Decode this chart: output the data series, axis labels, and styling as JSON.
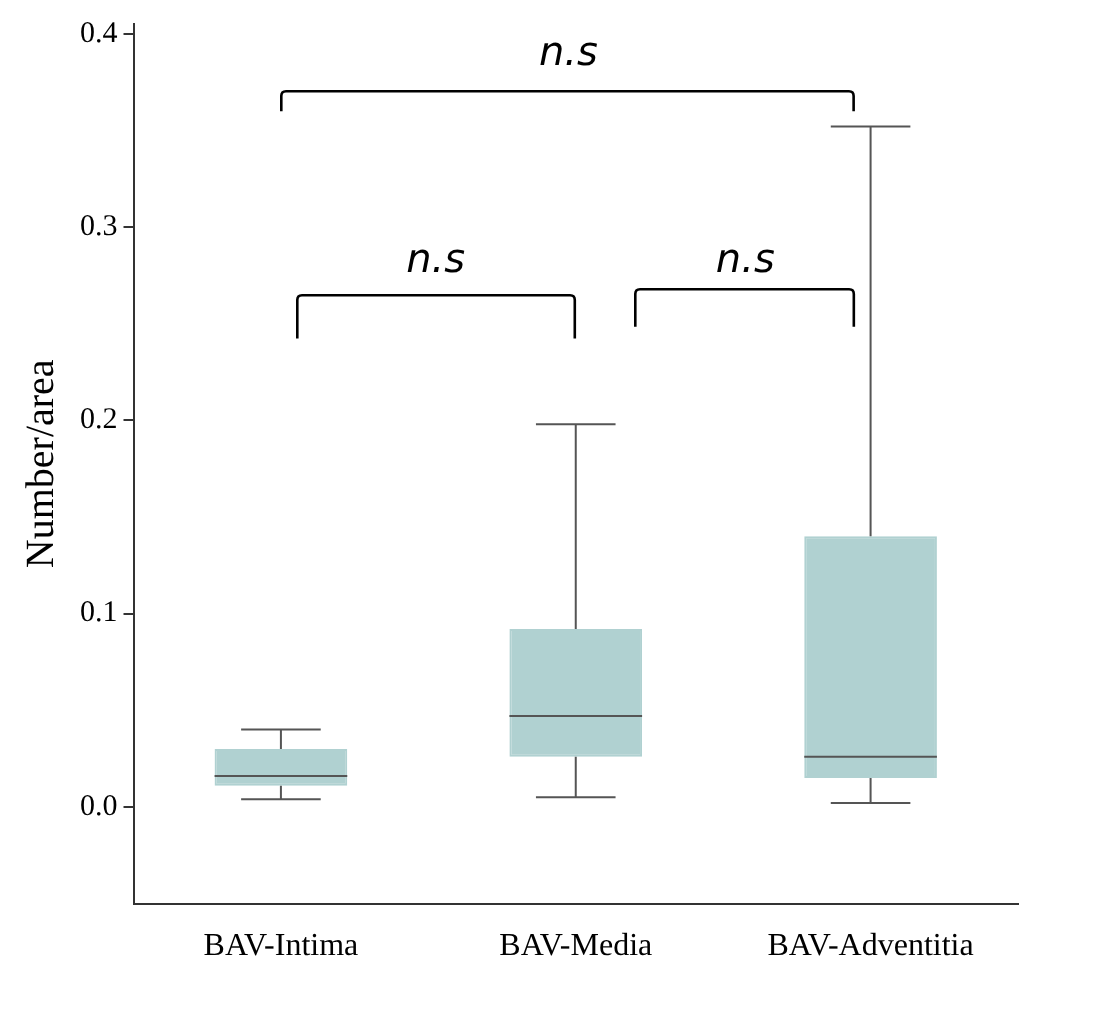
{
  "chart_data": {
    "type": "box",
    "ylabel": "Number/area",
    "categories": [
      "BAV-Intima",
      "BAV-Media",
      "BAV-Adventitia"
    ],
    "color": "#b0d1d1",
    "boxes": [
      {
        "low": 0.004,
        "q1": 0.011,
        "median": 0.016,
        "q3": 0.03,
        "high": 0.04
      },
      {
        "low": 0.005,
        "q1": 0.026,
        "median": 0.047,
        "q3": 0.092,
        "high": 0.198
      },
      {
        "low": 0.002,
        "q1": 0.015,
        "median": 0.026,
        "q3": 0.14,
        "high": 0.352
      }
    ],
    "ylim": [
      -0.05,
      0.405
    ],
    "yticks": [
      {
        "value": 0,
        "label": "0.0"
      },
      0.1,
      0.2,
      0.3,
      0.4
    ],
    "grid": false,
    "legend": false,
    "annotations": [
      "n.s",
      "n.s",
      "n.s"
    ]
  }
}
